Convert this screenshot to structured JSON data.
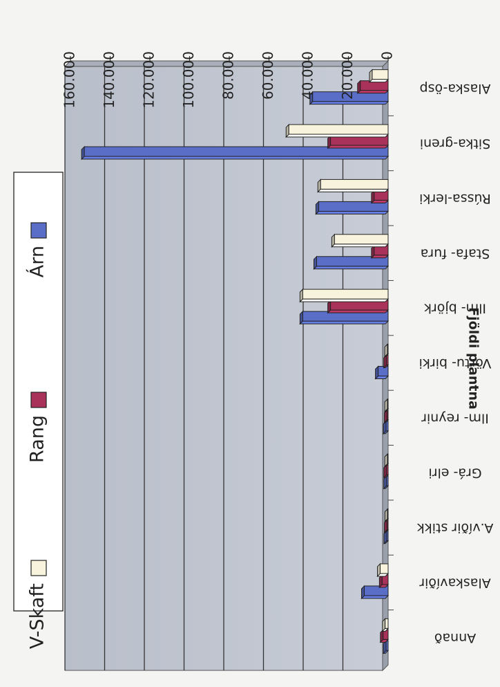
{
  "chart_data": {
    "type": "bar",
    "orientation": "horizontal",
    "rotated_180": true,
    "ylabel": "Fjöldi plantna",
    "xlim": [
      0,
      160000
    ],
    "ticks": [
      "0",
      "20.000",
      "40.000",
      "60.000",
      "80.000",
      "100.000",
      "120.000",
      "140.000",
      "160.000"
    ],
    "tick_values": [
      0,
      20000,
      40000,
      60000,
      80000,
      100000,
      120000,
      140000,
      160000
    ],
    "grid": true,
    "legend_position": "top",
    "categories": [
      "Alaska-ösp",
      "Sitka-greni",
      "Rússa-lerki",
      "Stafa- fura",
      "Ilm- björk",
      "Vörtu- birki",
      "Ilm- reynir",
      "Grá- elri",
      "A.víðir stikk",
      "Alaskavíðir",
      "Annað"
    ],
    "series": [
      {
        "name": "Árn",
        "color": "#5a6ec8",
        "values": [
          38000,
          153000,
          35000,
          36000,
          43000,
          5000,
          1000,
          800,
          700,
          12000,
          1000
        ]
      },
      {
        "name": "Rang",
        "color": "#a8325a",
        "values": [
          14000,
          29000,
          7000,
          7000,
          29000,
          800,
          500,
          800,
          500,
          3000,
          2500
        ]
      },
      {
        "name": "V-Skaft",
        "color": "#f7f3dc",
        "values": [
          8000,
          50000,
          34000,
          27000,
          43000,
          300,
          300,
          300,
          200,
          4000,
          1500
        ]
      }
    ]
  }
}
